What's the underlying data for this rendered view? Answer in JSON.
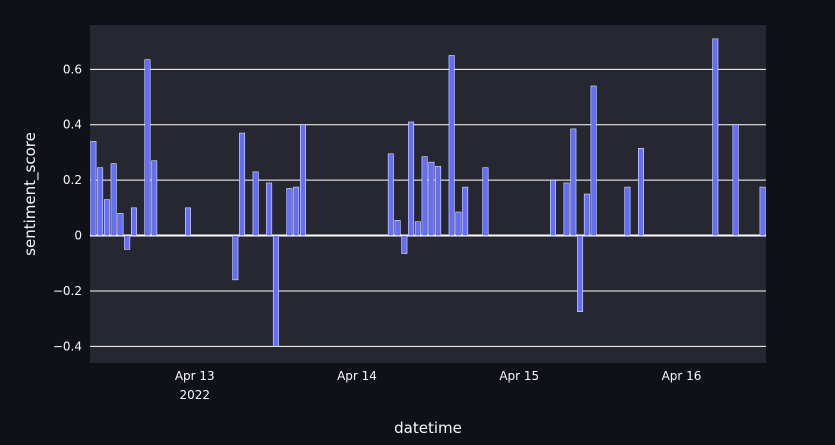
{
  "chart_data": {
    "type": "bar",
    "title": "",
    "xlabel": "datetime",
    "ylabel": "sentiment_score",
    "ylim": [
      -0.46,
      0.76
    ],
    "xlim": [
      "2022-04-12 09:00",
      "2022-04-16 12:00"
    ],
    "grid": true,
    "colors": {
      "background": "#0e1117",
      "plot_background": "#262730",
      "bar_fill": "#636efa",
      "bar_line": "#ffffff",
      "grid": "#ffffff",
      "text": "#fafafa"
    },
    "y_ticks": [
      {
        "value": 0.6,
        "label": "0.6"
      },
      {
        "value": 0.4,
        "label": "0.4"
      },
      {
        "value": 0.2,
        "label": "0.2"
      },
      {
        "value": 0,
        "label": "0"
      },
      {
        "value": -0.2,
        "label": "−0.2"
      },
      {
        "value": -0.4,
        "label": "−0.4"
      }
    ],
    "x_ticks": [
      {
        "value": "2022-04-13 00:00",
        "label": "Apr 13",
        "sublabel": "2022"
      },
      {
        "value": "2022-04-14 00:00",
        "label": "Apr 14",
        "sublabel": ""
      },
      {
        "value": "2022-04-15 00:00",
        "label": "Apr 15",
        "sublabel": ""
      },
      {
        "value": "2022-04-16 00:00",
        "label": "Apr 16",
        "sublabel": ""
      }
    ],
    "points": [
      {
        "x": "2022-04-12 09:00",
        "y": 0.34
      },
      {
        "x": "2022-04-12 10:00",
        "y": 0.245
      },
      {
        "x": "2022-04-12 11:00",
        "y": 0.13
      },
      {
        "x": "2022-04-12 12:00",
        "y": 0.26
      },
      {
        "x": "2022-04-12 13:00",
        "y": 0.08
      },
      {
        "x": "2022-04-12 14:00",
        "y": -0.05
      },
      {
        "x": "2022-04-12 15:00",
        "y": 0.1
      },
      {
        "x": "2022-04-12 17:00",
        "y": 0.635
      },
      {
        "x": "2022-04-12 18:00",
        "y": 0.27
      },
      {
        "x": "2022-04-12 23:00",
        "y": 0.1
      },
      {
        "x": "2022-04-13 06:00",
        "y": -0.16
      },
      {
        "x": "2022-04-13 07:00",
        "y": 0.37
      },
      {
        "x": "2022-04-13 09:00",
        "y": 0.23
      },
      {
        "x": "2022-04-13 11:00",
        "y": 0.19
      },
      {
        "x": "2022-04-13 12:00",
        "y": -0.4
      },
      {
        "x": "2022-04-13 14:00",
        "y": 0.17
      },
      {
        "x": "2022-04-13 15:00",
        "y": 0.175
      },
      {
        "x": "2022-04-13 16:00",
        "y": 0.4
      },
      {
        "x": "2022-04-14 05:00",
        "y": 0.295
      },
      {
        "x": "2022-04-14 06:00",
        "y": 0.055
      },
      {
        "x": "2022-04-14 07:00",
        "y": -0.065
      },
      {
        "x": "2022-04-14 08:00",
        "y": 0.41
      },
      {
        "x": "2022-04-14 09:00",
        "y": 0.05
      },
      {
        "x": "2022-04-14 10:00",
        "y": 0.285
      },
      {
        "x": "2022-04-14 11:00",
        "y": 0.265
      },
      {
        "x": "2022-04-14 12:00",
        "y": 0.25
      },
      {
        "x": "2022-04-14 14:00",
        "y": 0.65
      },
      {
        "x": "2022-04-14 15:00",
        "y": 0.085
      },
      {
        "x": "2022-04-14 16:00",
        "y": 0.175
      },
      {
        "x": "2022-04-14 19:00",
        "y": 0.245
      },
      {
        "x": "2022-04-15 05:00",
        "y": 0.2
      },
      {
        "x": "2022-04-15 07:00",
        "y": 0.19
      },
      {
        "x": "2022-04-15 08:00",
        "y": 0.385
      },
      {
        "x": "2022-04-15 09:00",
        "y": -0.275
      },
      {
        "x": "2022-04-15 10:00",
        "y": 0.15
      },
      {
        "x": "2022-04-15 11:00",
        "y": 0.54
      },
      {
        "x": "2022-04-15 16:00",
        "y": 0.175
      },
      {
        "x": "2022-04-15 18:00",
        "y": 0.315
      },
      {
        "x": "2022-04-16 05:00",
        "y": 0.71
      },
      {
        "x": "2022-04-16 08:00",
        "y": 0.4
      },
      {
        "x": "2022-04-16 12:00",
        "y": 0.175
      }
    ]
  }
}
